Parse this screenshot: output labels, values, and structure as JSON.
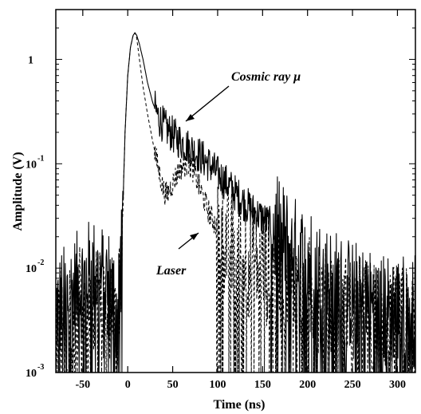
{
  "chart_data": {
    "type": "line",
    "title": "",
    "xlabel": "Time (ns)",
    "ylabel": "Amplitude (V)",
    "xlim": [
      -80,
      320
    ],
    "ylim": [
      0.001,
      3
    ],
    "yscale": "log",
    "xticks": [
      -50,
      0,
      50,
      100,
      150,
      200,
      250,
      300
    ],
    "xtick_labels": [
      "-50",
      "0",
      "50",
      "100",
      "150",
      "200",
      "250",
      "300"
    ],
    "yticks": [
      {
        "value": 1,
        "base": "1",
        "exp": ""
      },
      {
        "value": 0.1,
        "base": "10",
        "exp": "-1"
      },
      {
        "value": 0.01,
        "base": "10",
        "exp": "-2"
      },
      {
        "value": 0.001,
        "base": "10",
        "exp": "-3"
      }
    ],
    "grid": false,
    "series": [
      {
        "name": "Cosmic ray μ",
        "style": "solid",
        "color": "#000000",
        "noise": 0.18,
        "x": [
          -80,
          -60,
          -40,
          -20,
          -12,
          -8,
          -5,
          -3,
          0,
          3,
          6,
          8,
          10,
          13,
          17,
          22,
          28,
          35,
          42,
          50,
          60,
          70,
          80,
          90,
          100,
          110,
          120,
          130,
          140,
          150,
          160,
          170,
          180,
          190,
          200,
          220,
          240,
          260,
          280,
          300,
          320
        ],
        "y": [
          0.004,
          0.006,
          0.009,
          0.007,
          0.004,
          0.01,
          0.05,
          0.2,
          0.7,
          1.3,
          1.7,
          1.8,
          1.7,
          1.4,
          1.0,
          0.6,
          0.38,
          0.27,
          0.22,
          0.19,
          0.16,
          0.14,
          0.12,
          0.1,
          0.08,
          0.065,
          0.052,
          0.042,
          0.035,
          0.03,
          0.025,
          0.02,
          0.016,
          0.013,
          0.011,
          0.008,
          0.006,
          0.005,
          0.004,
          0.004,
          0.004
        ]
      },
      {
        "name": "Laser",
        "style": "dashed",
        "color": "#000000",
        "noise": 0.12,
        "x": [
          -80,
          -60,
          -40,
          -20,
          -12,
          -8,
          -5,
          -3,
          0,
          3,
          6,
          8,
          10,
          13,
          17,
          22,
          28,
          34,
          40,
          44,
          50,
          58,
          66,
          72,
          78,
          85,
          92,
          100,
          110,
          120,
          130,
          140,
          150,
          160,
          170,
          180,
          200,
          220,
          240,
          260,
          280,
          300,
          320
        ],
        "y": [
          0.003,
          0.004,
          0.006,
          0.004,
          0.002,
          0.01,
          0.05,
          0.2,
          0.7,
          1.3,
          1.7,
          1.8,
          1.6,
          1.0,
          0.55,
          0.3,
          0.16,
          0.09,
          0.055,
          0.05,
          0.065,
          0.09,
          0.1,
          0.09,
          0.065,
          0.045,
          0.032,
          0.024,
          0.018,
          0.014,
          0.012,
          0.011,
          0.01,
          0.009,
          0.008,
          0.007,
          0.006,
          0.005,
          0.004,
          0.004,
          0.003,
          0.003,
          0.003
        ]
      }
    ],
    "annotations": [
      {
        "text": "Cosmic ray μ",
        "series": "Cosmic ray μ"
      },
      {
        "text": "Laser",
        "series": "Laser"
      }
    ]
  }
}
